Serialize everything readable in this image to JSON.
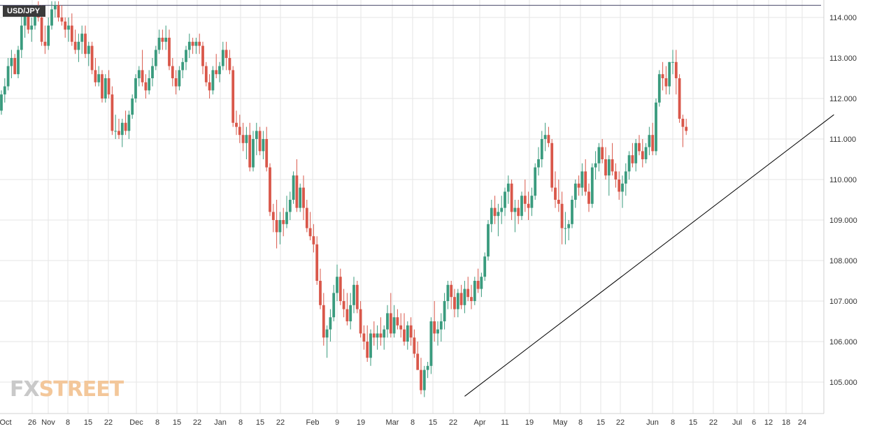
{
  "symbol": "USD/JPY",
  "watermark": {
    "part1": "FX",
    "part2": "STREET"
  },
  "colors": {
    "up": "#3a9b7e",
    "down": "#d9574a",
    "grid": "#e6e6e6",
    "trendline": "#000000"
  },
  "chart_data": {
    "type": "candlestick",
    "title": "USD/JPY",
    "xlabel": "",
    "ylabel": "",
    "ylim": [
      104.4,
      114.4
    ],
    "grid": true,
    "y_ticks": [
      "105.000",
      "106.000",
      "107.000",
      "108.000",
      "109.000",
      "110.000",
      "111.000",
      "112.000",
      "113.000",
      "114.000"
    ],
    "x_ticks": [
      "Oct",
      "26",
      "Nov",
      "8",
      "15",
      "22",
      "Dec",
      "8",
      "15",
      "22",
      "Jan",
      "8",
      "15",
      "22",
      "Feb",
      "9",
      "19",
      "Mar",
      "8",
      "15",
      "22",
      "Apr",
      "11",
      "19",
      "May",
      "8",
      "15",
      "22",
      "Jun",
      "8",
      "15",
      "22",
      "Jul",
      "6",
      "12",
      "18",
      "24"
    ],
    "resistance_line": 114.3,
    "trendline": {
      "start": {
        "bar": 138,
        "price": 104.65
      },
      "end": {
        "bar": 248,
        "price": 111.6
      }
    },
    "candles": [
      [
        111.7,
        112.2,
        111.6,
        112.1
      ],
      [
        112.1,
        112.5,
        111.9,
        112.3
      ],
      [
        112.3,
        113.0,
        112.2,
        112.8
      ],
      [
        112.8,
        113.2,
        112.5,
        113.0
      ],
      [
        113.0,
        113.1,
        112.6,
        112.6
      ],
      [
        112.6,
        113.3,
        112.5,
        113.2
      ],
      [
        113.2,
        114.2,
        113.0,
        113.8
      ],
      [
        113.8,
        114.3,
        113.5,
        114.1
      ],
      [
        114.1,
        114.2,
        113.6,
        113.7
      ],
      [
        113.7,
        114.0,
        113.4,
        113.8
      ],
      [
        113.8,
        114.3,
        113.7,
        114.2
      ],
      [
        114.2,
        114.4,
        113.9,
        114.0
      ],
      [
        114.0,
        114.3,
        113.3,
        113.4
      ],
      [
        113.4,
        113.8,
        113.1,
        113.3
      ],
      [
        113.3,
        114.0,
        113.2,
        113.8
      ],
      [
        113.8,
        114.4,
        113.7,
        114.2
      ],
      [
        114.2,
        114.4,
        114.0,
        114.3
      ],
      [
        114.3,
        114.4,
        113.9,
        114.0
      ],
      [
        114.0,
        114.3,
        113.8,
        113.9
      ],
      [
        113.9,
        114.0,
        113.5,
        113.7
      ],
      [
        113.7,
        114.0,
        113.4,
        113.8
      ],
      [
        113.8,
        114.1,
        113.3,
        113.4
      ],
      [
        113.4,
        113.7,
        113.1,
        113.2
      ],
      [
        113.2,
        113.6,
        112.9,
        113.4
      ],
      [
        113.4,
        113.8,
        113.1,
        113.6
      ],
      [
        113.6,
        113.8,
        113.0,
        113.1
      ],
      [
        113.1,
        113.4,
        112.8,
        113.3
      ],
      [
        113.3,
        113.4,
        112.6,
        112.7
      ],
      [
        112.7,
        113.0,
        112.3,
        112.4
      ],
      [
        112.4,
        112.8,
        112.3,
        112.6
      ],
      [
        112.6,
        112.7,
        111.9,
        112.0
      ],
      [
        112.0,
        112.6,
        111.9,
        112.5
      ],
      [
        112.5,
        112.7,
        112.0,
        112.1
      ],
      [
        112.1,
        112.3,
        111.1,
        111.2
      ],
      [
        111.2,
        111.6,
        111.0,
        111.2
      ],
      [
        111.2,
        111.5,
        111.0,
        111.1
      ],
      [
        111.1,
        111.5,
        110.8,
        111.4
      ],
      [
        111.4,
        111.7,
        111.1,
        111.2
      ],
      [
        111.2,
        111.7,
        111.0,
        111.6
      ],
      [
        111.6,
        112.1,
        111.5,
        112.0
      ],
      [
        112.0,
        112.6,
        111.9,
        112.5
      ],
      [
        112.5,
        112.8,
        112.3,
        112.7
      ],
      [
        112.7,
        113.2,
        112.3,
        112.4
      ],
      [
        112.4,
        112.6,
        112.0,
        112.2
      ],
      [
        112.2,
        112.7,
        112.1,
        112.5
      ],
      [
        112.5,
        113.0,
        112.3,
        112.8
      ],
      [
        112.8,
        113.3,
        112.7,
        113.2
      ],
      [
        113.2,
        113.7,
        113.1,
        113.5
      ],
      [
        113.5,
        113.7,
        113.2,
        113.4
      ],
      [
        113.4,
        113.8,
        113.2,
        113.5
      ],
      [
        113.5,
        113.7,
        112.7,
        112.8
      ],
      [
        112.8,
        113.0,
        112.3,
        112.5
      ],
      [
        112.5,
        112.7,
        112.1,
        112.3
      ],
      [
        112.3,
        112.8,
        112.2,
        112.7
      ],
      [
        112.7,
        113.0,
        112.5,
        112.9
      ],
      [
        112.9,
        113.3,
        112.7,
        113.2
      ],
      [
        113.2,
        113.6,
        113.0,
        113.4
      ],
      [
        113.4,
        113.5,
        113.1,
        113.3
      ],
      [
        113.3,
        113.5,
        113.1,
        113.4
      ],
      [
        113.4,
        113.6,
        113.1,
        113.3
      ],
      [
        113.3,
        113.4,
        112.6,
        112.8
      ],
      [
        112.8,
        112.9,
        112.3,
        112.4
      ],
      [
        112.4,
        112.6,
        112.0,
        112.2
      ],
      [
        112.2,
        112.8,
        112.1,
        112.7
      ],
      [
        112.7,
        113.1,
        112.5,
        112.6
      ],
      [
        112.6,
        112.9,
        112.4,
        112.8
      ],
      [
        112.8,
        113.4,
        112.7,
        113.2
      ],
      [
        113.2,
        113.4,
        112.7,
        113.0
      ],
      [
        113.0,
        113.2,
        112.6,
        112.7
      ],
      [
        112.7,
        112.8,
        111.3,
        111.4
      ],
      [
        111.4,
        111.7,
        111.1,
        111.3
      ],
      [
        111.3,
        111.6,
        110.9,
        111.1
      ],
      [
        111.1,
        111.4,
        110.7,
        110.9
      ],
      [
        110.9,
        111.3,
        110.5,
        111.1
      ],
      [
        111.1,
        111.4,
        110.2,
        110.3
      ],
      [
        110.3,
        111.2,
        110.2,
        111.0
      ],
      [
        111.0,
        111.4,
        110.6,
        111.2
      ],
      [
        111.2,
        111.3,
        110.6,
        110.7
      ],
      [
        110.7,
        111.2,
        110.5,
        111.0
      ],
      [
        111.0,
        111.3,
        110.2,
        110.3
      ],
      [
        110.3,
        110.4,
        109.1,
        109.2
      ],
      [
        109.2,
        109.4,
        108.7,
        109.0
      ],
      [
        109.0,
        109.5,
        108.3,
        108.7
      ],
      [
        108.7,
        109.2,
        108.4,
        109.0
      ],
      [
        109.0,
        109.3,
        108.6,
        108.9
      ],
      [
        108.9,
        109.6,
        108.8,
        109.2
      ],
      [
        109.2,
        109.7,
        109.0,
        109.5
      ],
      [
        109.5,
        110.2,
        109.4,
        110.1
      ],
      [
        110.1,
        110.5,
        109.2,
        109.3
      ],
      [
        109.3,
        109.9,
        109.2,
        109.8
      ],
      [
        109.8,
        110.1,
        109.0,
        109.3
      ],
      [
        109.3,
        109.5,
        108.7,
        108.8
      ],
      [
        108.8,
        109.2,
        108.5,
        108.6
      ],
      [
        108.6,
        108.9,
        108.2,
        108.4
      ],
      [
        108.4,
        108.6,
        107.4,
        107.5
      ],
      [
        107.5,
        107.8,
        106.8,
        106.9
      ],
      [
        106.9,
        107.2,
        105.9,
        106.1
      ],
      [
        106.1,
        106.4,
        105.6,
        106.3
      ],
      [
        106.3,
        106.8,
        106.0,
        106.6
      ],
      [
        106.6,
        107.4,
        106.5,
        107.2
      ],
      [
        107.2,
        107.9,
        107.0,
        107.6
      ],
      [
        107.6,
        107.8,
        106.9,
        107.0
      ],
      [
        107.0,
        107.3,
        106.6,
        106.8
      ],
      [
        106.8,
        107.2,
        106.4,
        106.5
      ],
      [
        106.5,
        107.2,
        106.3,
        106.9
      ],
      [
        106.9,
        107.6,
        106.7,
        107.4
      ],
      [
        107.4,
        107.5,
        106.7,
        106.8
      ],
      [
        106.8,
        107.0,
        106.1,
        106.2
      ],
      [
        106.2,
        106.4,
        105.8,
        106.0
      ],
      [
        106.0,
        106.4,
        105.5,
        105.6
      ],
      [
        105.6,
        106.3,
        105.4,
        106.2
      ],
      [
        106.2,
        106.5,
        105.9,
        106.1
      ],
      [
        106.1,
        106.4,
        105.8,
        106.2
      ],
      [
        106.2,
        106.6,
        105.9,
        106.1
      ],
      [
        106.1,
        106.4,
        105.8,
        106.3
      ],
      [
        106.3,
        106.9,
        106.1,
        106.7
      ],
      [
        106.7,
        107.2,
        106.1,
        106.2
      ],
      [
        106.2,
        106.9,
        106.1,
        106.6
      ],
      [
        106.6,
        106.8,
        106.3,
        106.4
      ],
      [
        106.4,
        106.7,
        106.1,
        106.3
      ],
      [
        106.3,
        106.7,
        105.9,
        106.0
      ],
      [
        106.0,
        106.5,
        105.8,
        106.4
      ],
      [
        106.4,
        106.6,
        105.9,
        106.1
      ],
      [
        106.1,
        106.3,
        105.6,
        105.7
      ],
      [
        105.7,
        106.0,
        105.3,
        105.3
      ],
      [
        105.3,
        105.6,
        104.7,
        104.8
      ],
      [
        104.8,
        105.4,
        104.63,
        105.3
      ],
      [
        105.3,
        105.5,
        105.1,
        105.4
      ],
      [
        105.4,
        106.6,
        105.2,
        106.5
      ],
      [
        106.5,
        107.0,
        106.0,
        106.2
      ],
      [
        106.2,
        106.5,
        105.9,
        106.3
      ],
      [
        106.3,
        106.7,
        106.0,
        106.5
      ],
      [
        106.5,
        107.2,
        106.3,
        107.0
      ],
      [
        107.0,
        107.5,
        106.8,
        107.4
      ],
      [
        107.4,
        107.5,
        106.8,
        107.1
      ],
      [
        107.1,
        107.3,
        106.6,
        106.8
      ],
      [
        106.8,
        107.3,
        106.6,
        107.2
      ],
      [
        107.2,
        107.4,
        106.8,
        106.9
      ],
      [
        106.9,
        107.5,
        106.7,
        107.3
      ],
      [
        107.3,
        107.6,
        107.0,
        107.1
      ],
      [
        107.1,
        107.4,
        106.8,
        107.0
      ],
      [
        107.0,
        107.6,
        106.9,
        107.5
      ],
      [
        107.5,
        107.8,
        107.2,
        107.3
      ],
      [
        107.3,
        107.7,
        107.1,
        107.6
      ],
      [
        107.6,
        108.2,
        107.5,
        108.1
      ],
      [
        108.1,
        109.0,
        108.0,
        108.9
      ],
      [
        108.9,
        109.5,
        108.7,
        109.3
      ],
      [
        109.3,
        109.6,
        108.9,
        109.1
      ],
      [
        109.1,
        109.4,
        108.6,
        109.2
      ],
      [
        109.2,
        109.6,
        108.9,
        109.3
      ],
      [
        109.3,
        109.8,
        109.1,
        109.7
      ],
      [
        109.7,
        110.1,
        109.4,
        109.9
      ],
      [
        109.9,
        110.0,
        109.0,
        109.2
      ],
      [
        109.2,
        109.5,
        108.7,
        109.3
      ],
      [
        109.3,
        109.5,
        108.9,
        109.1
      ],
      [
        109.1,
        109.7,
        109.0,
        109.6
      ],
      [
        109.6,
        110.0,
        109.2,
        109.4
      ],
      [
        109.4,
        109.7,
        109.0,
        109.3
      ],
      [
        109.3,
        109.8,
        109.1,
        109.6
      ],
      [
        109.6,
        110.4,
        109.5,
        110.3
      ],
      [
        110.3,
        110.8,
        110.1,
        110.5
      ],
      [
        110.5,
        111.2,
        110.3,
        111.0
      ],
      [
        111.0,
        111.4,
        110.7,
        111.1
      ],
      [
        111.1,
        111.3,
        110.8,
        110.9
      ],
      [
        110.9,
        111.0,
        109.7,
        109.8
      ],
      [
        109.8,
        110.2,
        109.3,
        109.5
      ],
      [
        109.5,
        110.0,
        109.2,
        109.4
      ],
      [
        109.4,
        109.7,
        108.4,
        108.8
      ],
      [
        108.8,
        109.2,
        108.4,
        108.8
      ],
      [
        108.8,
        109.0,
        108.5,
        108.9
      ],
      [
        108.9,
        109.6,
        108.8,
        109.5
      ],
      [
        109.5,
        110.0,
        109.3,
        109.9
      ],
      [
        109.9,
        110.1,
        109.6,
        109.8
      ],
      [
        109.8,
        110.4,
        109.6,
        110.2
      ],
      [
        110.2,
        110.5,
        109.6,
        109.7
      ],
      [
        109.7,
        109.9,
        109.2,
        109.4
      ],
      [
        109.4,
        110.4,
        109.3,
        110.3
      ],
      [
        110.3,
        110.7,
        110.0,
        110.4
      ],
      [
        110.4,
        110.9,
        110.2,
        110.8
      ],
      [
        110.8,
        111.0,
        110.4,
        110.5
      ],
      [
        110.5,
        110.8,
        110.0,
        110.1
      ],
      [
        110.1,
        110.6,
        109.6,
        110.5
      ],
      [
        110.5,
        110.9,
        110.1,
        110.2
      ],
      [
        110.2,
        110.4,
        109.8,
        110.0
      ],
      [
        110.0,
        110.2,
        109.5,
        109.7
      ],
      [
        109.7,
        110.1,
        109.3,
        109.9
      ],
      [
        109.9,
        110.4,
        109.6,
        110.2
      ],
      [
        110.2,
        110.7,
        110.0,
        110.6
      ],
      [
        110.6,
        110.9,
        110.3,
        110.4
      ],
      [
        110.4,
        111.0,
        110.2,
        110.9
      ],
      [
        110.9,
        111.1,
        110.6,
        110.7
      ],
      [
        110.7,
        111.0,
        110.3,
        110.5
      ],
      [
        110.5,
        110.9,
        110.4,
        110.8
      ],
      [
        110.8,
        111.3,
        110.6,
        111.1
      ],
      [
        111.1,
        111.4,
        110.6,
        110.7
      ],
      [
        110.7,
        112.0,
        110.6,
        111.9
      ],
      [
        111.9,
        112.7,
        111.8,
        112.6
      ],
      [
        112.6,
        112.9,
        112.2,
        112.5
      ],
      [
        112.5,
        112.8,
        112.1,
        112.3
      ],
      [
        112.3,
        112.9,
        112.1,
        112.9
      ],
      [
        112.9,
        113.2,
        112.6,
        112.9
      ],
      [
        112.9,
        113.2,
        112.1,
        112.5
      ],
      [
        112.5,
        112.6,
        111.4,
        111.5
      ],
      [
        111.5,
        111.6,
        110.8,
        111.3
      ],
      [
        111.3,
        111.5,
        111.1,
        111.2
      ]
    ]
  }
}
